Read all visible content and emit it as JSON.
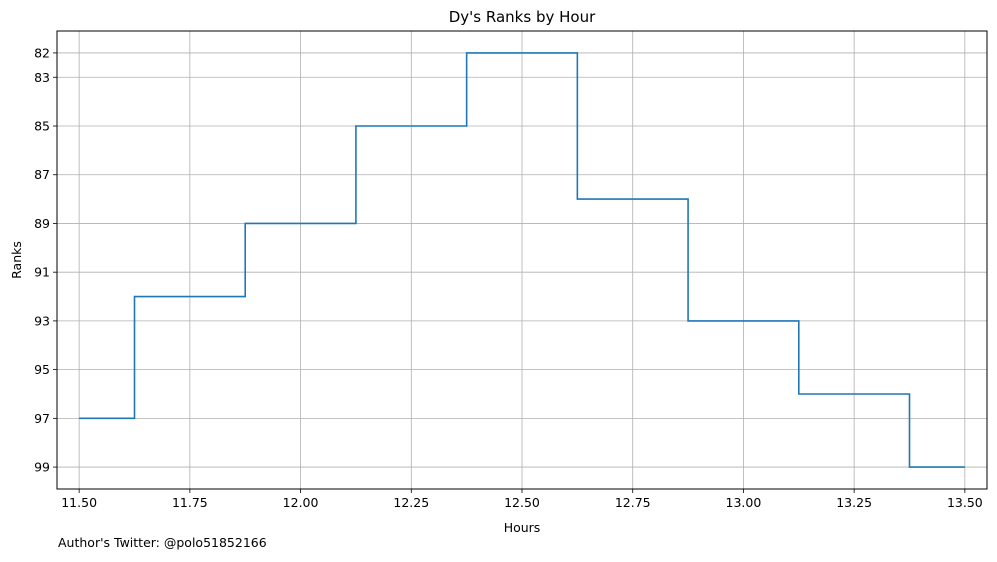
{
  "chart_data": {
    "type": "line",
    "step": "mid",
    "title": "Dy's Ranks by Hour",
    "xlabel": "Hours",
    "ylabel": "Ranks",
    "xlim": [
      11.45,
      13.55
    ],
    "ylim": [
      99.9,
      81.1
    ],
    "y_inverted": true,
    "grid": true,
    "x_ticks": [
      11.5,
      11.75,
      12.0,
      12.25,
      12.5,
      12.75,
      13.0,
      13.25,
      13.5
    ],
    "x_tick_labels": [
      "11.50",
      "11.75",
      "12.00",
      "12.25",
      "12.50",
      "12.75",
      "13.00",
      "13.25",
      "13.50"
    ],
    "y_ticks": [
      82,
      83,
      85,
      87,
      89,
      91,
      93,
      95,
      97,
      99
    ],
    "y_tick_labels": [
      "82",
      "83",
      "85",
      "87",
      "89",
      "91",
      "93",
      "95",
      "97",
      "99"
    ],
    "series": [
      {
        "color": "#1f77b4",
        "x": [
          11.5,
          11.75,
          12.0,
          12.25,
          12.5,
          12.75,
          13.0,
          13.25,
          13.5
        ],
        "y": [
          97,
          92,
          89,
          85,
          82,
          88,
          93,
          96,
          99
        ]
      }
    ]
  },
  "footer": "Author's Twitter: @polo51852166"
}
